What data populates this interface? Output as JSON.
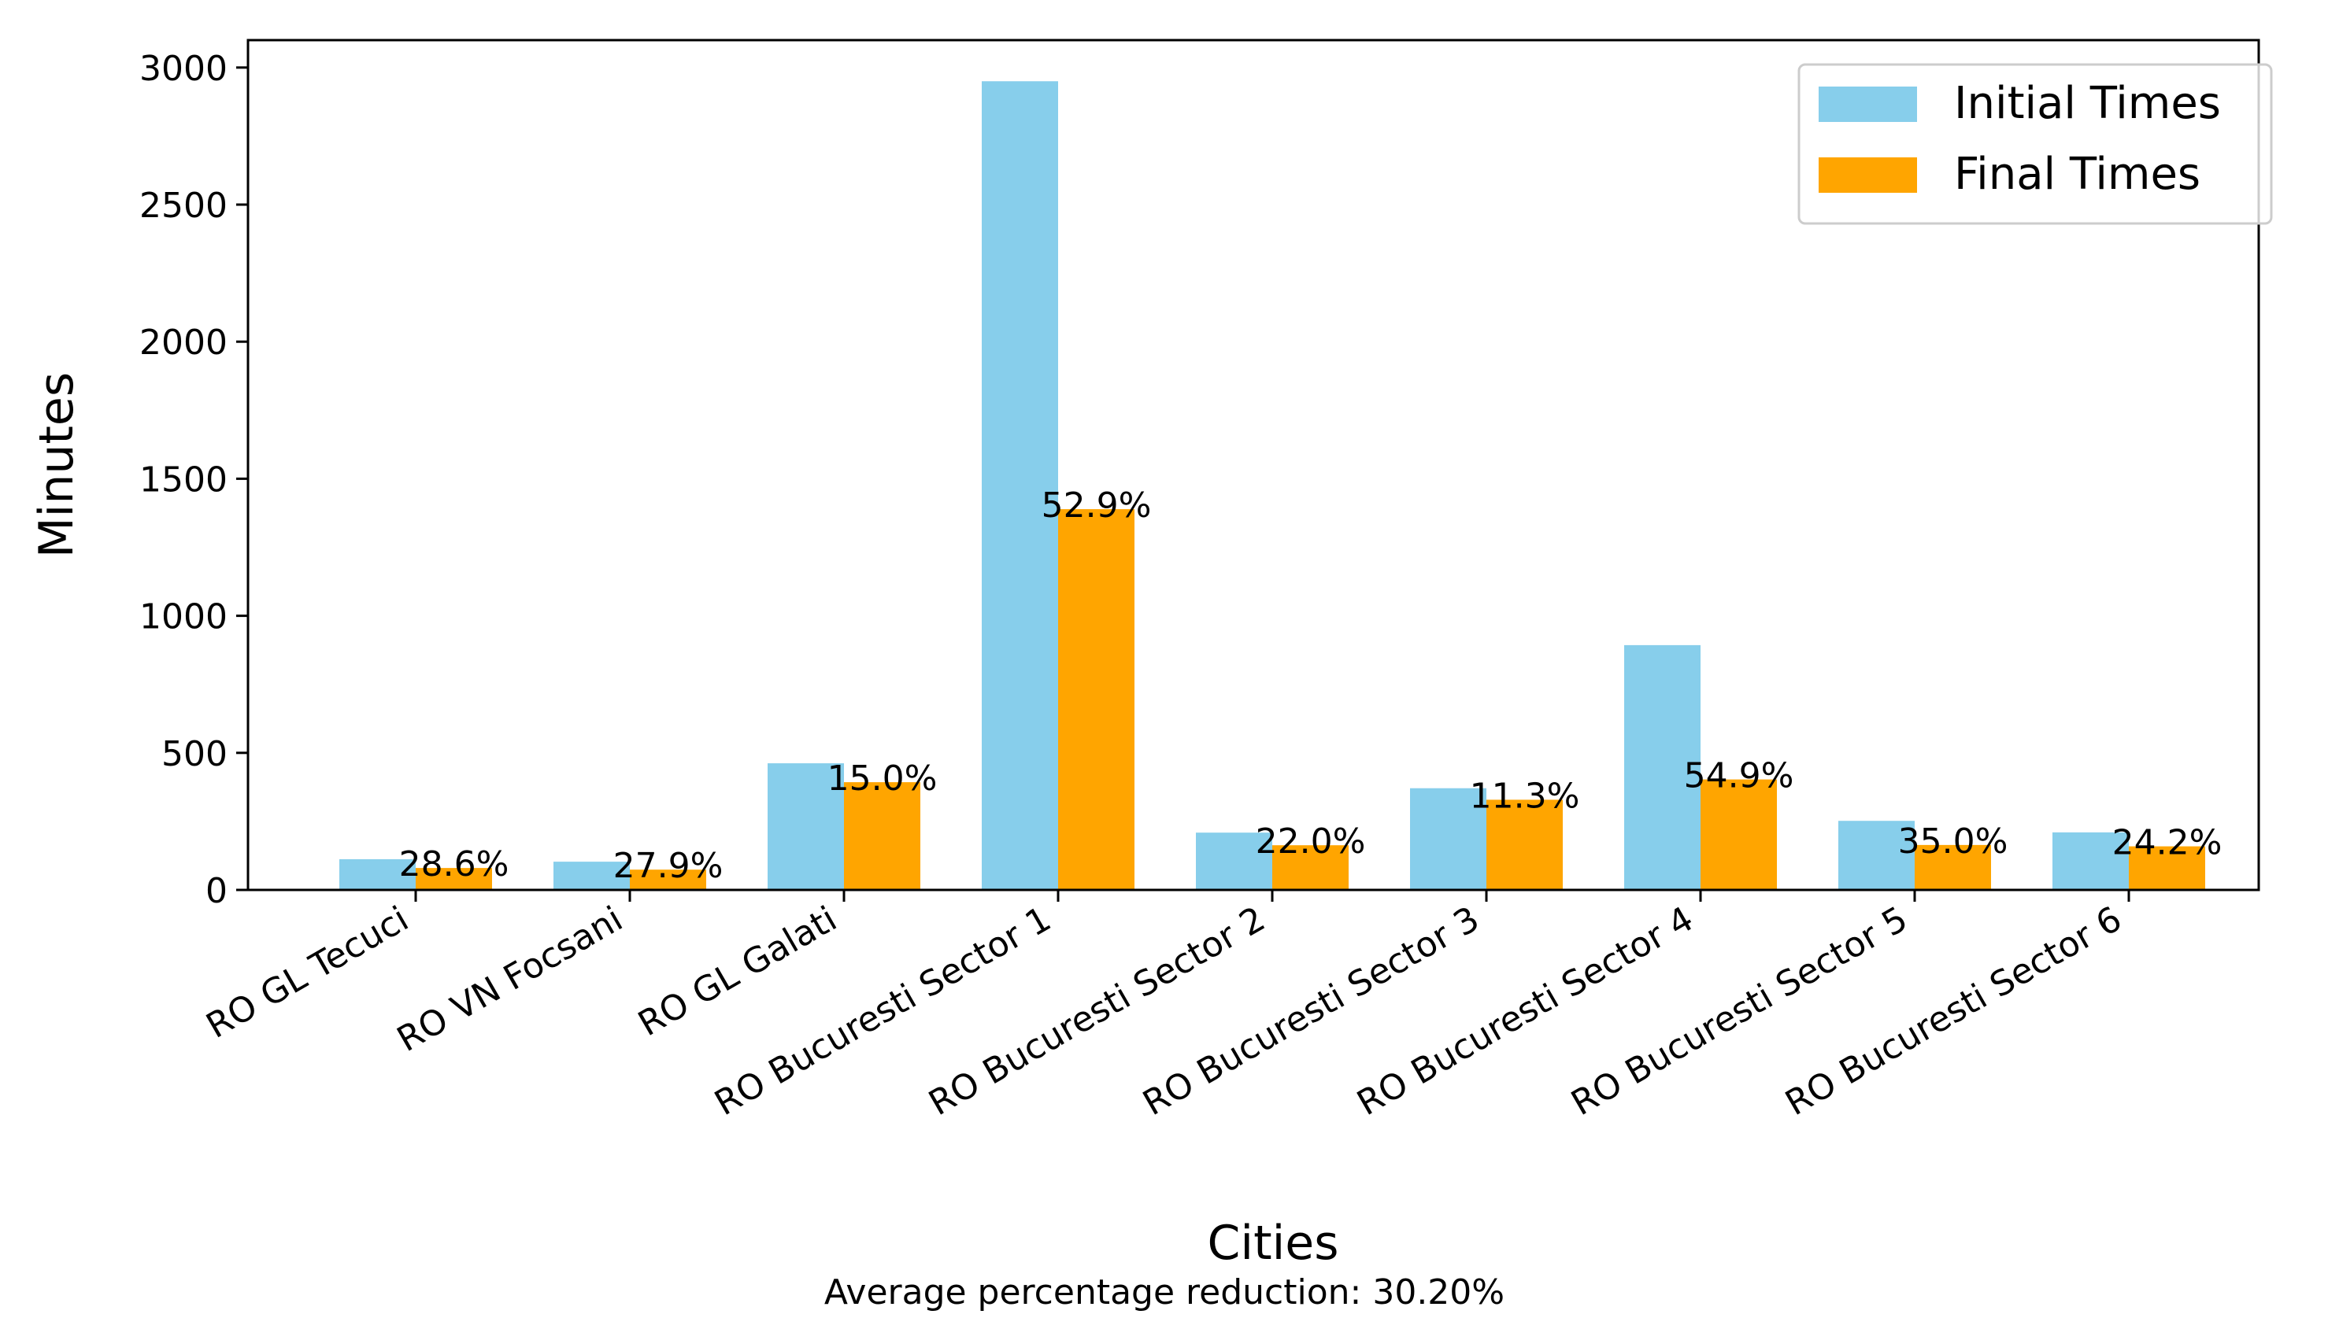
{
  "chart_data": {
    "type": "bar",
    "title": "",
    "xlabel": "Cities",
    "ylabel": "Minutes",
    "caption": "Average percentage reduction: 30.20%",
    "categories": [
      "RO GL Tecuci",
      "RO VN Focsani",
      "RO GL Galati",
      "RO Bucuresti Sector 1",
      "RO Bucuresti Sector 2",
      "RO Bucuresti Sector 3",
      "RO Bucuresti Sector 4",
      "RO Bucuresti Sector 5",
      "RO Bucuresti Sector 6"
    ],
    "series": [
      {
        "name": "Initial Times",
        "color": "#87ceeb",
        "values": [
          112,
          103,
          462,
          2950,
          209,
          371,
          893,
          252,
          210
        ]
      },
      {
        "name": "Final Times",
        "color": "#ffa500",
        "values": [
          80,
          74,
          393,
          1389,
          163,
          329,
          403,
          164,
          159
        ]
      }
    ],
    "reduction_labels": [
      "28.6%",
      "27.9%",
      "15.0%",
      "52.9%",
      "22.0%",
      "11.3%",
      "54.9%",
      "35.0%",
      "24.2%"
    ],
    "ylim": [
      0,
      3100
    ],
    "yticks": [
      0,
      500,
      1000,
      1500,
      2000,
      2500,
      3000
    ],
    "grid": false,
    "legend_position": "upper right"
  }
}
